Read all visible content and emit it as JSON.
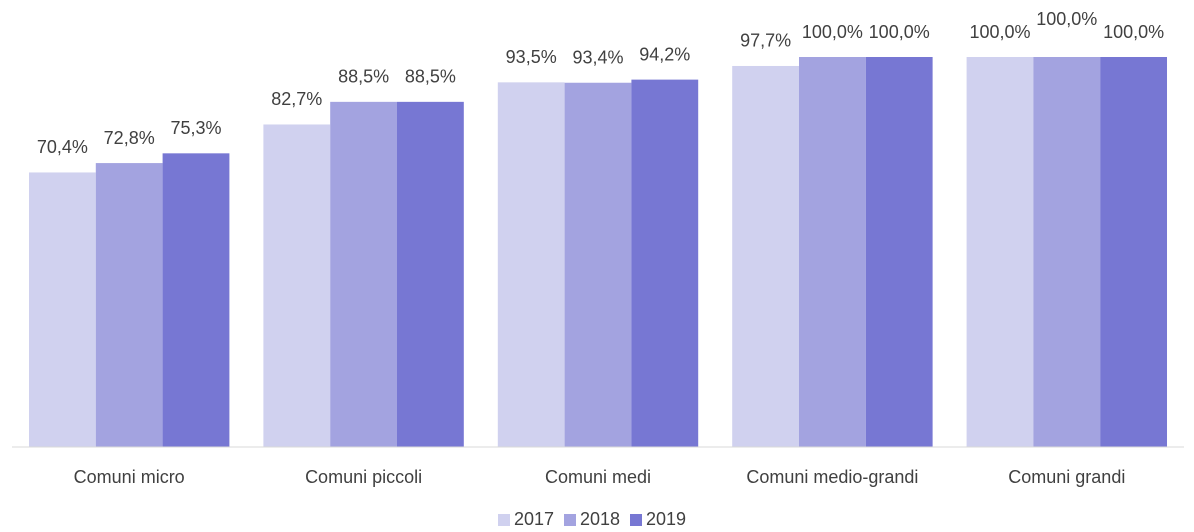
{
  "chart_data": {
    "type": "bar",
    "categories": [
      "Comuni micro",
      "Comuni piccoli",
      "Comuni medi",
      "Comuni medio-grandi",
      "Comuni grandi"
    ],
    "series": [
      {
        "name": "2017",
        "color": "#d0d1ef",
        "values": [
          70.4,
          82.7,
          93.5,
          97.7,
          100
        ],
        "value_labels": [
          "70,4%",
          "82,7%",
          "93,5%",
          "97,7%",
          "100,0%"
        ]
      },
      {
        "name": "2018",
        "color": "#a3a3e0",
        "values": [
          72.8,
          88.5,
          93.4,
          100,
          100
        ],
        "value_labels": [
          "72,8%",
          "88,5%",
          "93,4%",
          "100,0%",
          "100,0%"
        ]
      },
      {
        "name": "2019",
        "color": "#7777d3",
        "values": [
          75.3,
          88.5,
          94.2,
          100,
          100
        ],
        "value_labels": [
          "75,3%",
          "88,5%",
          "94,2%",
          "100,0%",
          "100,0%"
        ]
      }
    ],
    "ylim": [
      0,
      100
    ],
    "legend": "bottom"
  }
}
